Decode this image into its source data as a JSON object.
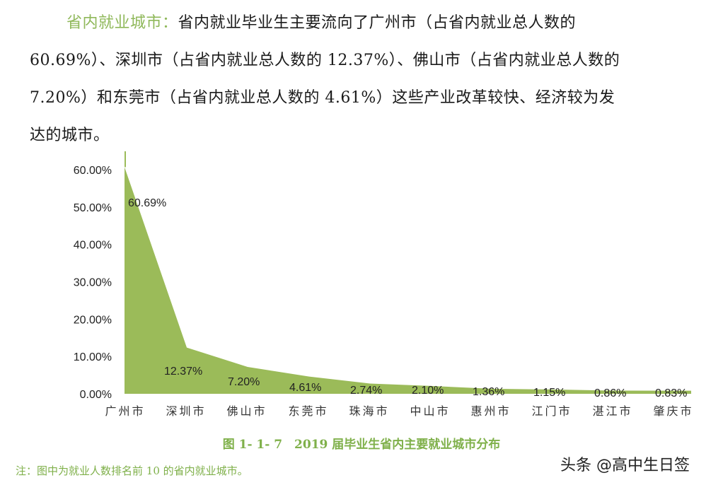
{
  "paragraph": {
    "highlight": "省内就业城市：",
    "line1_rest": "省内就业毕业生主要流向了广州市（占省内就业总人数的",
    "line2": "60.69%）、深圳市（占省内就业总人数的 12.37%）、佛山市（占省内就业总人数的",
    "line3": "7.20%）和东莞市（占省内就业总人数的 4.61%）这些产业改革较快、经济较为发",
    "line4": "达的城市。"
  },
  "caption": "图 1- 1- 7　2019 届毕业生省内主要就业城市分布",
  "note": "注：图中为就业人数排名前 10 的省内就业城市。",
  "watermark": "头条 @高中生日签",
  "colors": {
    "area_fill": "#9bbb59",
    "caption_green": "#7fb04a",
    "highlight_green": "#8fb85a"
  },
  "chart_data": {
    "type": "area",
    "title": "2019 届毕业生省内主要就业城市分布",
    "xlabel": "",
    "ylabel": "",
    "categories": [
      "广州市",
      "深圳市",
      "佛山市",
      "东莞市",
      "珠海市",
      "中山市",
      "惠州市",
      "江门市",
      "湛江市",
      "肇庆市"
    ],
    "values": [
      60.69,
      12.37,
      7.2,
      4.61,
      2.74,
      2.1,
      1.36,
      1.15,
      0.86,
      0.83
    ],
    "data_labels": [
      "60.69%",
      "12.37%",
      "7.20%",
      "4.61%",
      "2.74%",
      "2.10%",
      "1.36%",
      "1.15%",
      "0.86%",
      "0.83%"
    ],
    "yticks": [
      "0.00%",
      "10.00%",
      "20.00%",
      "30.00%",
      "40.00%",
      "50.00%",
      "60.00%"
    ],
    "ylim": [
      0,
      60
    ],
    "grid": false,
    "legend": "none"
  }
}
